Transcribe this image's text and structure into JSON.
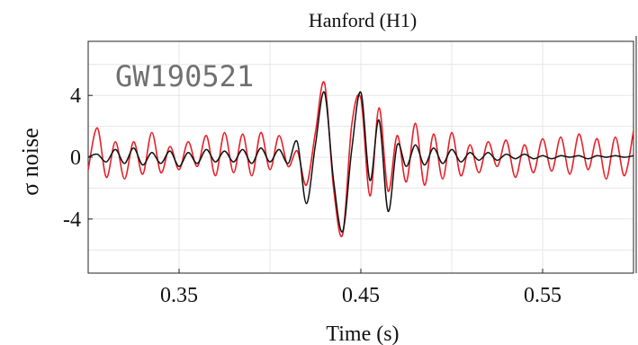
{
  "chart_data": {
    "type": "line",
    "title": "Hanford (H1)",
    "annotation": "GW190521",
    "xlabel": "Time (s)",
    "ylabel": "σ noise",
    "xlim": [
      0.3,
      0.6
    ],
    "ylim": [
      -7.5,
      7.5
    ],
    "xticks": [
      0.35,
      0.45,
      0.55
    ],
    "xtick_labels": [
      "0.35",
      "0.45",
      "0.55"
    ],
    "yticks": [
      4,
      0,
      -4
    ],
    "ytick_labels": [
      "4",
      "0",
      "-4"
    ],
    "grid": true,
    "colors": {
      "red": "#e8202a",
      "black": "#111111",
      "grid": "#e6e6e6",
      "annotation": "#707070"
    },
    "series": [
      {
        "color": "#e8202a",
        "x": [
          0.3,
          0.305,
          0.31,
          0.315,
          0.32,
          0.325,
          0.33,
          0.335,
          0.34,
          0.345,
          0.35,
          0.355,
          0.36,
          0.365,
          0.37,
          0.375,
          0.38,
          0.385,
          0.39,
          0.395,
          0.4,
          0.405,
          0.41,
          0.415,
          0.42,
          0.425,
          0.43,
          0.435,
          0.44,
          0.445,
          0.45,
          0.455,
          0.46,
          0.465,
          0.47,
          0.475,
          0.48,
          0.485,
          0.49,
          0.495,
          0.5,
          0.505,
          0.51,
          0.515,
          0.52,
          0.525,
          0.53,
          0.535,
          0.54,
          0.545,
          0.55,
          0.555,
          0.56,
          0.565,
          0.57,
          0.575,
          0.58,
          0.585,
          0.59,
          0.595,
          0.6
        ],
        "y": [
          -0.8,
          1.9,
          -1.3,
          1.0,
          -1.4,
          1.0,
          -1.1,
          1.6,
          -1.0,
          0.7,
          -0.8,
          1.0,
          -0.6,
          1.4,
          -1.2,
          1.6,
          -1.0,
          1.5,
          -1.2,
          1.6,
          -0.8,
          1.4,
          -0.6,
          0.4,
          -1.8,
          1.6,
          4.8,
          -2.0,
          -5.0,
          2.1,
          3.8,
          -2.5,
          3.2,
          -2.2,
          1.4,
          -1.6,
          2.2,
          -1.8,
          1.5,
          -1.4,
          1.6,
          -1.2,
          0.8,
          -1.0,
          1.0,
          -0.6,
          1.1,
          -1.3,
          0.8,
          -1.0,
          1.2,
          -0.9,
          1.3,
          -1.1,
          1.5,
          -0.8,
          1.2,
          -1.4,
          1.3,
          -1.2,
          1.7
        ]
      },
      {
        "color": "#111111",
        "x": [
          0.3,
          0.305,
          0.31,
          0.315,
          0.32,
          0.325,
          0.33,
          0.335,
          0.34,
          0.345,
          0.35,
          0.355,
          0.36,
          0.365,
          0.37,
          0.375,
          0.38,
          0.385,
          0.39,
          0.395,
          0.4,
          0.405,
          0.41,
          0.415,
          0.42,
          0.425,
          0.43,
          0.435,
          0.44,
          0.445,
          0.45,
          0.455,
          0.46,
          0.465,
          0.47,
          0.475,
          0.48,
          0.485,
          0.49,
          0.495,
          0.5,
          0.505,
          0.51,
          0.515,
          0.52,
          0.525,
          0.53,
          0.535,
          0.54,
          0.545,
          0.55,
          0.555,
          0.56,
          0.565,
          0.57,
          0.575,
          0.58,
          0.585,
          0.59,
          0.595,
          0.6
        ],
        "y": [
          0.0,
          0.2,
          -0.3,
          0.5,
          -0.4,
          0.6,
          -0.5,
          0.3,
          -0.4,
          0.4,
          -0.6,
          0.3,
          -0.4,
          0.5,
          -0.3,
          0.4,
          -0.3,
          0.5,
          -0.4,
          0.6,
          -0.3,
          0.5,
          -0.4,
          1.0,
          -3.0,
          0.8,
          4.2,
          -1.5,
          -4.8,
          0.5,
          4.2,
          -1.5,
          2.4,
          -3.5,
          0.8,
          -0.6,
          0.8,
          -0.5,
          0.6,
          -0.4,
          0.5,
          -0.3,
          0.3,
          -0.2,
          0.3,
          -0.2,
          0.2,
          -0.1,
          0.2,
          -0.1,
          0.1,
          -0.1,
          0.1,
          0.0,
          0.1,
          -0.1,
          0.1,
          0.0,
          0.1,
          0.0,
          0.1
        ]
      }
    ]
  }
}
